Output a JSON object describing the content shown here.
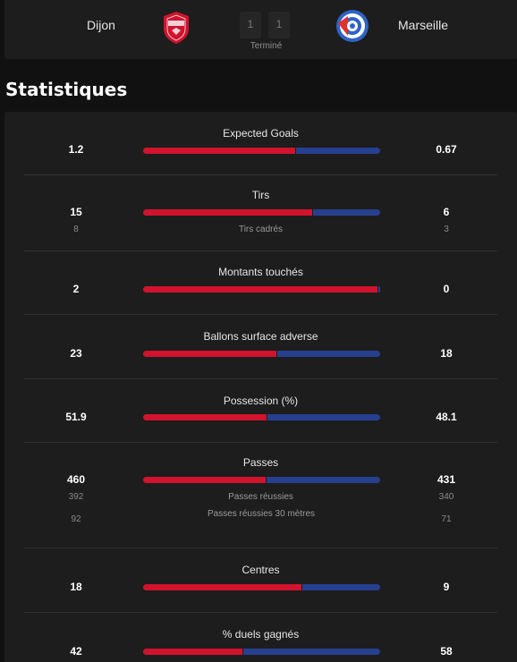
{
  "match": {
    "home_team": "Dijon",
    "away_team": "Marseille",
    "home_score": "1",
    "away_score": "1",
    "status": "Terminé",
    "home_logo_icon": "dfco-crest-icon",
    "away_logo_icon": "rcs-crest-icon"
  },
  "section_title": "Statistiques",
  "colors": {
    "home": "#d1132e",
    "away": "#26408f"
  },
  "stats": [
    {
      "label": "Expected Goals",
      "home": "1.2",
      "away": "0.67",
      "home_share": 0.642
    },
    {
      "label": "Tirs",
      "home": "15",
      "away": "6",
      "home_share": 0.714,
      "sub": [
        {
          "label": "Tirs cadrés",
          "home": "8",
          "away": "3"
        }
      ]
    },
    {
      "label": "Montants touchés",
      "home": "2",
      "away": "0",
      "home_share": 0.99
    },
    {
      "label": "Ballons surface adverse",
      "home": "23",
      "away": "18",
      "home_share": 0.561
    },
    {
      "label": "Possession (%)",
      "home": "51.9",
      "away": "48.1",
      "home_share": 0.519
    },
    {
      "label": "Passes",
      "home": "460",
      "away": "431",
      "home_share": 0.516,
      "sub": [
        {
          "label": "Passes réussies",
          "home": "392",
          "away": "340"
        },
        {
          "label": "Passes réussies 30 mètres",
          "home": "92",
          "away": "71"
        }
      ]
    },
    {
      "label": "Centres",
      "home": "18",
      "away": "9",
      "home_share": 0.667
    },
    {
      "label": "% duels gagnés",
      "home": "42",
      "away": "58",
      "home_share": 0.42
    }
  ]
}
